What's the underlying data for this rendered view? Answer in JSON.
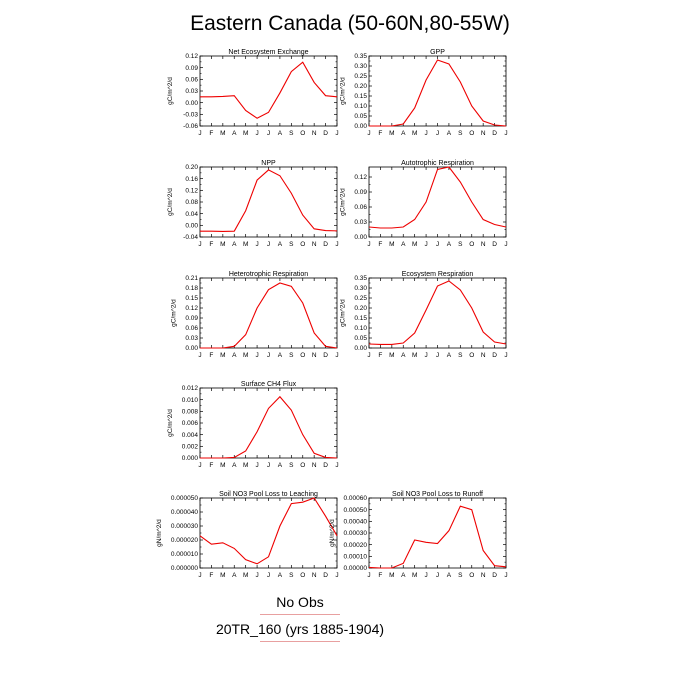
{
  "title": "Eastern Canada (50-60N,80-55W)",
  "legend": [
    {
      "label": "No Obs",
      "color": "#e8a0a0"
    },
    {
      "label": "20TR_160 (yrs 1885-1904)",
      "color": "#e8a0a0"
    }
  ],
  "chart_data": [
    {
      "type": "line",
      "title": "Net Ecosystem Exchange",
      "ylabel": "gC/m^2/d",
      "xticks": [
        "J",
        "F",
        "M",
        "A",
        "M",
        "J",
        "J",
        "A",
        "S",
        "O",
        "N",
        "D",
        "J"
      ],
      "yticks": [
        "-0.06",
        "-0.03",
        "0.00",
        "0.03",
        "0.06",
        "0.09",
        "0.12"
      ],
      "ylim": [
        -0.06,
        0.12
      ],
      "color": "#ee0000",
      "x": [
        1,
        2,
        3,
        4,
        5,
        6,
        7,
        8,
        9,
        10,
        11,
        12,
        13
      ],
      "y": [
        0.015,
        0.015,
        0.016,
        0.018,
        -0.02,
        -0.04,
        -0.025,
        0.025,
        0.08,
        0.104,
        0.052,
        0.018,
        0.015
      ]
    },
    {
      "type": "line",
      "title": "GPP",
      "ylabel": "gC/m^2/d",
      "xticks": [
        "J",
        "F",
        "M",
        "A",
        "M",
        "J",
        "J",
        "A",
        "S",
        "O",
        "N",
        "D",
        "J"
      ],
      "yticks": [
        "0.00",
        "0.05",
        "0.10",
        "0.15",
        "0.20",
        "0.25",
        "0.30",
        "0.35"
      ],
      "ylim": [
        0,
        0.35
      ],
      "color": "#ee0000",
      "x": [
        1,
        2,
        3,
        4,
        5,
        6,
        7,
        8,
        9,
        10,
        11,
        12,
        13
      ],
      "y": [
        0.0,
        0.0,
        0.0,
        0.01,
        0.09,
        0.23,
        0.33,
        0.31,
        0.22,
        0.1,
        0.025,
        0.005,
        0.0
      ]
    },
    {
      "type": "line",
      "title": "NPP",
      "ylabel": "gC/m^2/d",
      "xticks": [
        "J",
        "F",
        "M",
        "A",
        "M",
        "J",
        "J",
        "A",
        "S",
        "O",
        "N",
        "D",
        "J"
      ],
      "yticks": [
        "-0.04",
        "0.00",
        "0.04",
        "0.08",
        "0.12",
        "0.16",
        "0.20"
      ],
      "ylim": [
        -0.04,
        0.2
      ],
      "color": "#ee0000",
      "x": [
        1,
        2,
        3,
        4,
        5,
        6,
        7,
        8,
        9,
        10,
        11,
        12,
        13
      ],
      "y": [
        -0.02,
        -0.02,
        -0.021,
        -0.02,
        0.05,
        0.155,
        0.19,
        0.17,
        0.11,
        0.035,
        -0.012,
        -0.018,
        -0.019
      ]
    },
    {
      "type": "line",
      "title": "Autotrophic Respiration",
      "ylabel": "gC/m^2/d",
      "xticks": [
        "J",
        "F",
        "M",
        "A",
        "M",
        "J",
        "J",
        "A",
        "S",
        "O",
        "N",
        "D",
        "J"
      ],
      "yticks": [
        "0.00",
        "0.03",
        "0.06",
        "0.09",
        "0.12"
      ],
      "ylim": [
        0,
        0.14
      ],
      "color": "#ee0000",
      "x": [
        1,
        2,
        3,
        4,
        5,
        6,
        7,
        8,
        9,
        10,
        11,
        12,
        13
      ],
      "y": [
        0.02,
        0.018,
        0.018,
        0.02,
        0.035,
        0.07,
        0.135,
        0.14,
        0.11,
        0.07,
        0.035,
        0.025,
        0.02
      ]
    },
    {
      "type": "line",
      "title": "Heterotrophic Respiration",
      "ylabel": "gC/m^2/d",
      "xticks": [
        "J",
        "F",
        "M",
        "A",
        "M",
        "J",
        "J",
        "A",
        "S",
        "O",
        "N",
        "D",
        "J"
      ],
      "yticks": [
        "0.00",
        "0.03",
        "0.06",
        "0.09",
        "0.12",
        "0.15",
        "0.18",
        "0.21"
      ],
      "ylim": [
        0,
        0.21
      ],
      "color": "#ee0000",
      "x": [
        1,
        2,
        3,
        4,
        5,
        6,
        7,
        8,
        9,
        10,
        11,
        12,
        13
      ],
      "y": [
        0.0,
        0.0,
        0.0,
        0.005,
        0.04,
        0.12,
        0.175,
        0.195,
        0.185,
        0.135,
        0.045,
        0.005,
        0.0
      ]
    },
    {
      "type": "line",
      "title": "Ecosystem Respiration",
      "ylabel": "gC/m^2/d",
      "xticks": [
        "J",
        "F",
        "M",
        "A",
        "M",
        "J",
        "J",
        "A",
        "S",
        "O",
        "N",
        "D",
        "J"
      ],
      "yticks": [
        "0.00",
        "0.05",
        "0.10",
        "0.15",
        "0.20",
        "0.25",
        "0.30",
        "0.35"
      ],
      "ylim": [
        0,
        0.35
      ],
      "color": "#ee0000",
      "x": [
        1,
        2,
        3,
        4,
        5,
        6,
        7,
        8,
        9,
        10,
        11,
        12,
        13
      ],
      "y": [
        0.02,
        0.018,
        0.018,
        0.025,
        0.075,
        0.19,
        0.31,
        0.335,
        0.29,
        0.2,
        0.08,
        0.03,
        0.02
      ]
    },
    {
      "type": "line",
      "title": "Surface CH4 Flux",
      "ylabel": "gC/m^2/d",
      "xticks": [
        "J",
        "F",
        "M",
        "A",
        "M",
        "J",
        "J",
        "A",
        "S",
        "O",
        "N",
        "D",
        "J"
      ],
      "yticks": [
        "0.000",
        "0.002",
        "0.004",
        "0.006",
        "0.008",
        "0.010",
        "0.012"
      ],
      "ylim": [
        0,
        0.012
      ],
      "color": "#ee0000",
      "x": [
        1,
        2,
        3,
        4,
        5,
        6,
        7,
        8,
        9,
        10,
        11,
        12,
        13
      ],
      "y": [
        0.0,
        0.0,
        0.0,
        0.0001,
        0.0012,
        0.0045,
        0.0085,
        0.0105,
        0.0082,
        0.004,
        0.0008,
        0.0001,
        0.0
      ]
    },
    {
      "type": "line",
      "title": "Soil NO3 Pool Loss to Leaching",
      "ylabel": "gN/m^2/d",
      "xticks": [
        "J",
        "F",
        "M",
        "A",
        "M",
        "J",
        "J",
        "A",
        "S",
        "O",
        "N",
        "D",
        "J"
      ],
      "yticks": [
        "0.000000",
        "0.000010",
        "0.000020",
        "0.000030",
        "0.000040",
        "0.000050"
      ],
      "ylim": [
        0,
        5e-05
      ],
      "color": "#ee0000",
      "x": [
        1,
        2,
        3,
        4,
        5,
        6,
        7,
        8,
        9,
        10,
        11,
        12,
        13
      ],
      "y": [
        2.3e-05,
        1.7e-05,
        1.8e-05,
        1.4e-05,
        6e-06,
        3e-06,
        8e-06,
        3e-05,
        4.6e-05,
        4.7e-05,
        5e-05,
        3.7e-05,
        2.3e-05
      ]
    },
    {
      "type": "line",
      "title": "Soil NO3 Pool Loss to Runoff",
      "ylabel": "gN/m^2/d",
      "xticks": [
        "J",
        "F",
        "M",
        "A",
        "M",
        "J",
        "J",
        "A",
        "S",
        "O",
        "N",
        "D",
        "J"
      ],
      "yticks": [
        "0.00000",
        "0.00010",
        "0.00020",
        "0.00030",
        "0.00040",
        "0.00050",
        "0.00060"
      ],
      "ylim": [
        0,
        0.0006
      ],
      "color": "#ee0000",
      "x": [
        1,
        2,
        3,
        4,
        5,
        6,
        7,
        8,
        9,
        10,
        11,
        12,
        13
      ],
      "y": [
        5e-06,
        0.0,
        0.0,
        4e-05,
        0.00024,
        0.00022,
        0.00021,
        0.00032,
        0.00053,
        0.0005,
        0.00015,
        2e-05,
        1e-05
      ]
    }
  ]
}
